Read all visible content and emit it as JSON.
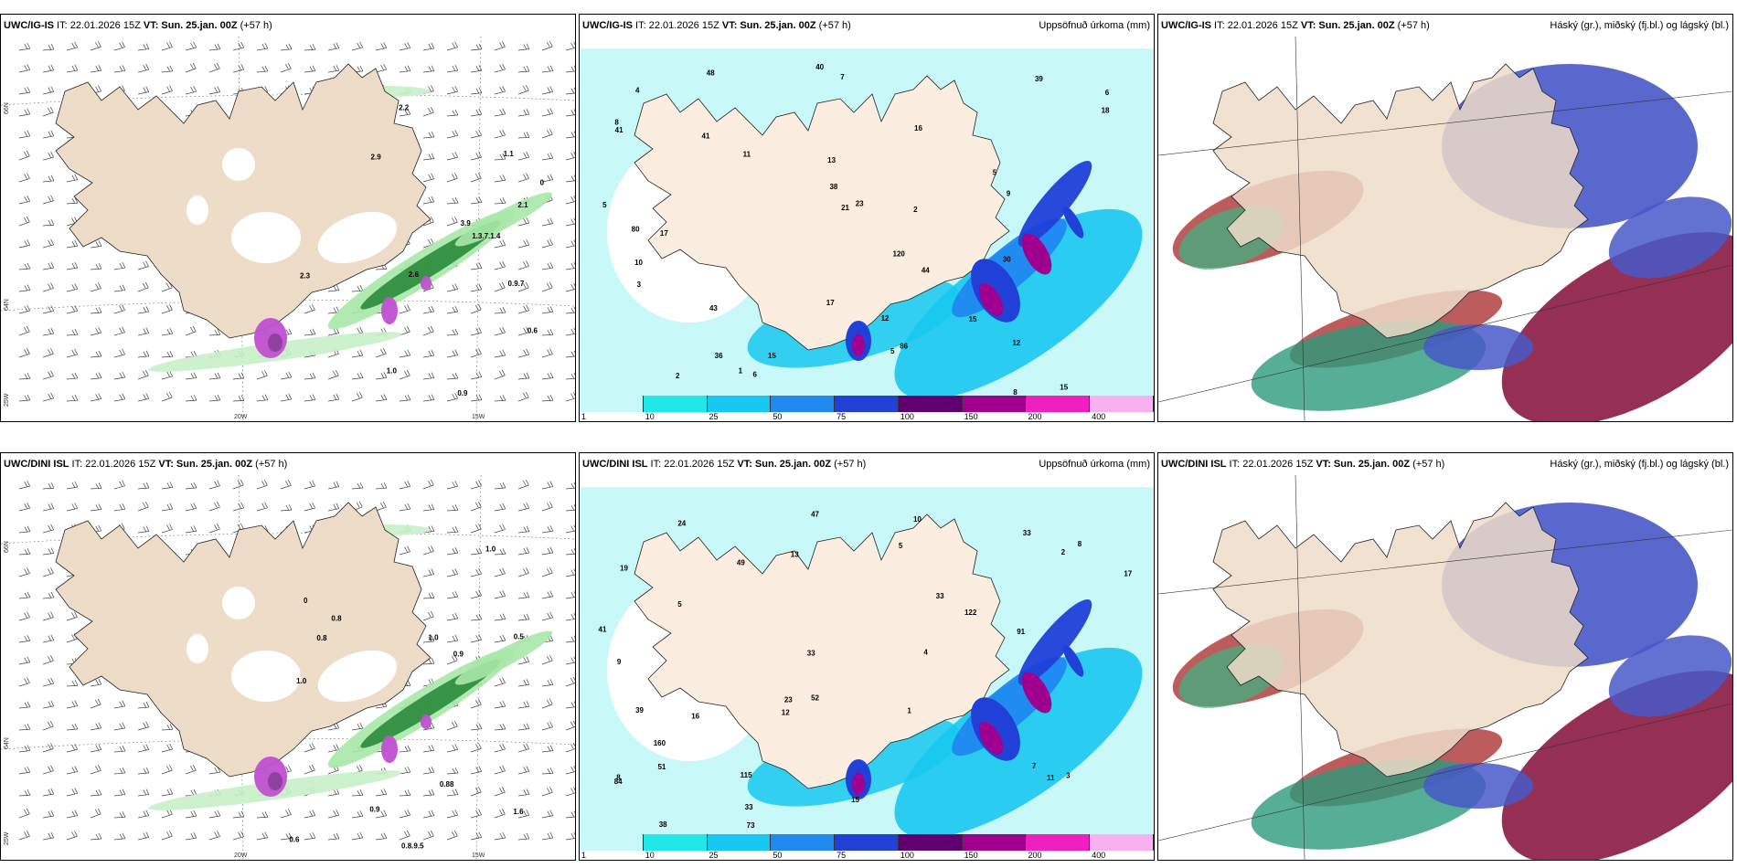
{
  "panels": [
    {
      "model": "UWC/IG-IS",
      "it": "IT: 22.01.2026 15Z",
      "vt": "VT: Sun. 25.jan. 00Z",
      "lead": "(+57 h)",
      "title": ""
    },
    {
      "model": "UWC/IG-IS",
      "it": "IT: 22.01.2026 15Z",
      "vt": "VT: Sun. 25.jan. 00Z",
      "lead": "(+57 h)",
      "title": "Uppsöfnuð úrkoma (mm)"
    },
    {
      "model": "UWC/IG-IS",
      "it": "IT: 22.01.2026 15Z",
      "vt": "VT: Sun. 25.jan. 00Z",
      "lead": "(+57 h)",
      "title": "Háský (gr.), miðský (fj.bl.) og lágský (bl.)"
    },
    {
      "model": "UWC/DINI ISL",
      "it": "IT: 22.01.2026 15Z",
      "vt": "VT: Sun. 25.jan. 00Z",
      "lead": "(+57 h)",
      "title": ""
    },
    {
      "model": "UWC/DINI ISL",
      "it": "IT: 22.01.2026 15Z",
      "vt": "VT: Sun. 25.jan. 00Z",
      "lead": "(+57 h)",
      "title": "Uppsöfnuð úrkoma (mm)"
    },
    {
      "model": "UWC/DINI ISL",
      "it": "IT: 22.01.2026 15Z",
      "vt": "VT: Sun. 25.jan. 00Z",
      "lead": "(+57 h)",
      "title": "Háský (gr.), miðský (fj.bl.) og lágský (bl.)"
    }
  ],
  "axis": {
    "lat66": "66N",
    "lat64": "64N",
    "lon25": "25W",
    "lon20": "20W",
    "lon15": "15W",
    "lat66r": "66N",
    "lat64r": "64N"
  },
  "colorbar": {
    "ticks": [
      "1",
      "10",
      "25",
      "50",
      "75",
      "100",
      "150",
      "200",
      "400"
    ],
    "colors": [
      "#c8f8f8",
      "#20e8e8",
      "#18c8f0",
      "#2088f0",
      "#2040d8",
      "#600070",
      "#a00090",
      "#f020c0",
      "#f8b0f0"
    ]
  },
  "labels_top_snow": [
    "0.6",
    "0.9.7",
    "1.1",
    "2.1",
    "2.9",
    "0.9",
    "0",
    "2.3",
    "2.6",
    "1.0",
    "2.2",
    "3.9",
    "1.3.7.1.4"
  ],
  "labels_bot_snow": [
    "0.88",
    "1.0",
    "0.5",
    "0.9",
    "1.6",
    "0",
    "0.8",
    "1.0",
    "0.8.9.5",
    "1.0",
    "0.8",
    "0.6",
    "0.9"
  ],
  "labels_top_precip": [
    "5",
    "7",
    "5",
    "6",
    "8",
    "15",
    "17",
    "16",
    "13",
    "39",
    "23",
    "30",
    "40",
    "41",
    "41",
    "43",
    "86",
    "80",
    "120",
    "17",
    "15",
    "12",
    "18",
    "38",
    "36",
    "21",
    "44",
    "48",
    "6",
    "5",
    "10",
    "8",
    "2",
    "2",
    "1",
    "3",
    "9",
    "4",
    "15",
    "11",
    "12"
  ],
  "labels_bot_precip": [
    "5",
    "10",
    "17",
    "13",
    "33",
    "19",
    "24",
    "33",
    "33",
    "49",
    "73",
    "51",
    "84",
    "115",
    "33",
    "91",
    "122",
    "9",
    "2",
    "3",
    "5",
    "4",
    "16",
    "15",
    "12",
    "8",
    "23",
    "47",
    "52",
    "160",
    "38",
    "41",
    "39",
    "7",
    "8",
    "1",
    "11"
  ]
}
